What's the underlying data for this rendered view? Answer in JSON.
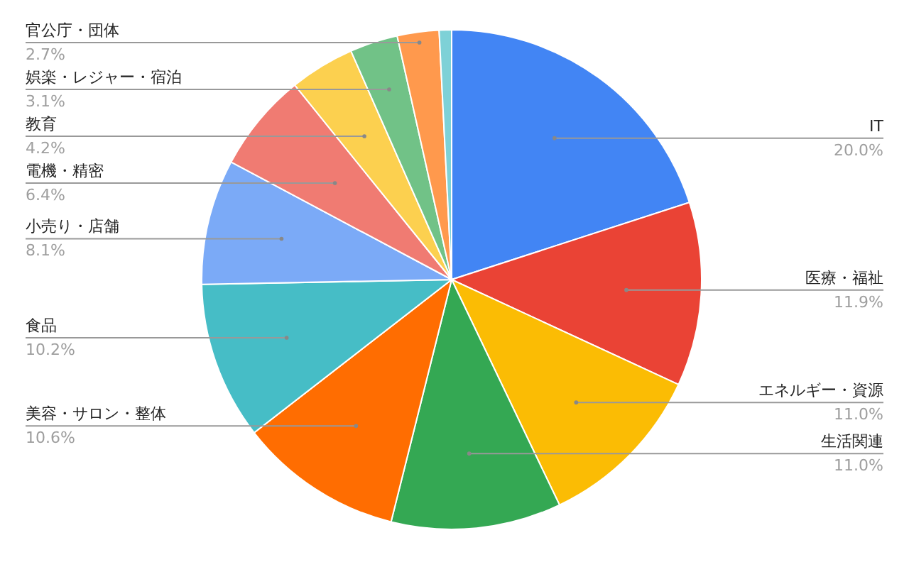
{
  "chart_data": {
    "type": "pie",
    "categories": [
      "IT",
      "医療・福祉",
      "エネルギー・資源",
      "生活関連",
      "美容・サロン・整体",
      "食品",
      "小売り・店舗",
      "電機・精密",
      "教育",
      "娯楽・レジャー・宿泊",
      "官公庁・団体",
      null
    ],
    "values": [
      20.0,
      11.9,
      11.0,
      11.0,
      10.6,
      10.2,
      8.1,
      6.4,
      4.2,
      3.1,
      2.7,
      0.8
    ],
    "value_labels": [
      "20.0%",
      "11.9%",
      "11.0%",
      "11.0%",
      "10.6%",
      "10.2%",
      "8.1%",
      "6.4%",
      "4.2%",
      "3.1%",
      "2.7%",
      null
    ],
    "colors": [
      "#4285f4",
      "#ea4335",
      "#fbbc04",
      "#34a853",
      "#ff6d01",
      "#46bdc6",
      "#7baaf7",
      "#f07b72",
      "#fcd04f",
      "#71c287",
      "#ff994d",
      "#7ed1d7"
    ]
  }
}
